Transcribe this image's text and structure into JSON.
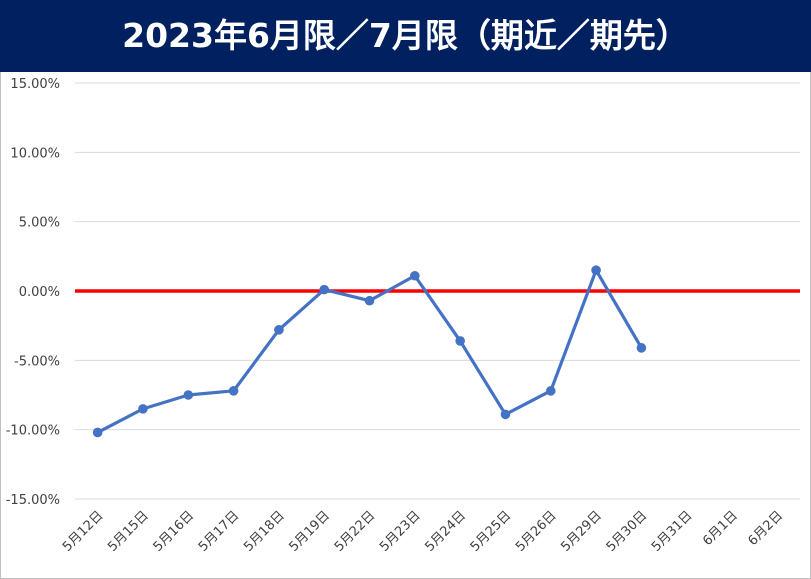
{
  "header": {
    "title": "2023年6月限／7月限（期近／期先）"
  },
  "colors": {
    "header_bg": "#002060",
    "header_text": "#ffffff",
    "series_line": "#4472C4",
    "zero_line": "#FF0000",
    "gridline": "#D9D9D9",
    "tick_text": "#404040"
  },
  "chart_data": {
    "type": "line",
    "title": "2023年6月限／7月限（期近／期先）",
    "xlabel": "",
    "ylabel": "",
    "categories": [
      "5月12日",
      "5月15日",
      "5月16日",
      "5月17日",
      "5月18日",
      "5月19日",
      "5月22日",
      "5月23日",
      "5月24日",
      "5月25日",
      "5月26日",
      "5月29日",
      "5月30日",
      "5月31日",
      "6月1日",
      "6月2日"
    ],
    "y_ticks": [
      "15.00%",
      "10.00%",
      "5.00%",
      "0.00%",
      "-5.00%",
      "-10.00%",
      "-15.00%"
    ],
    "ylim": [
      -15,
      15
    ],
    "grid": true,
    "legend": "none",
    "series": [
      {
        "values": [
          -10.2,
          -8.5,
          -7.5,
          -7.2,
          -2.8,
          0.1,
          -0.7,
          1.1,
          -3.6,
          -8.9,
          -7.2,
          1.5,
          -4.1,
          null,
          null,
          null
        ]
      }
    ],
    "reference_line": {
      "value": 0
    }
  }
}
